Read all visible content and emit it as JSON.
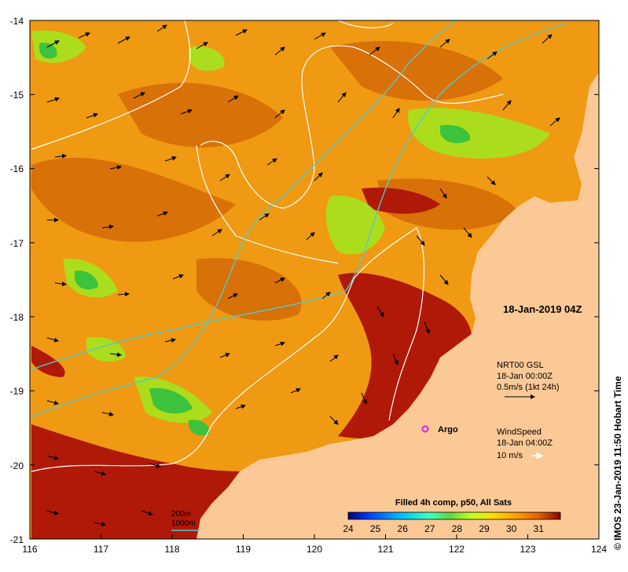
{
  "axes": {
    "x_ticks": [
      "116",
      "117",
      "118",
      "119",
      "120",
      "121",
      "122",
      "123",
      "124"
    ],
    "y_ticks": [
      "-14",
      "-15",
      "-16",
      "-17",
      "-18",
      "-19",
      "-20",
      "-21"
    ],
    "lon_range": [
      116,
      124
    ],
    "lat_range": [
      -21,
      -14
    ]
  },
  "annotations": {
    "date_title": "18-Jan-2019 04Z",
    "gsl_line1": "NRT00 GSL",
    "gsl_line2": "18-Jan 00:00Z",
    "gsl_line3": "0.5m/s (1kt 24h)",
    "wind_line1": "WindSpeed",
    "wind_line2": "18-Jan 04:00Z",
    "wind_line3": "10 m/s",
    "argo_label": "Argo",
    "isobath_200": "200m",
    "isobath_1000": "1000m",
    "credit": "© IMOS 23-Jan-2019 11:50 Hobart Time"
  },
  "colorbar": {
    "title": "Filled 4h comp, p50, All Sats",
    "ticks": [
      "24",
      "25",
      "26",
      "27",
      "28",
      "29",
      "30",
      "31"
    ],
    "range": [
      24,
      31.8
    ],
    "colors": [
      "#00007f",
      "#0040ff",
      "#00bfff",
      "#40ffbf",
      "#60d840",
      "#c0ff20",
      "#ffe000",
      "#ff9a00",
      "#e06000",
      "#b02000",
      "#8b0000"
    ]
  },
  "map_style": {
    "land_color": "#fbc996",
    "sst_base_color": "#ef9a12",
    "isobath_200_color": "#ffffff",
    "isobath_1000_color": "#66cccc"
  }
}
